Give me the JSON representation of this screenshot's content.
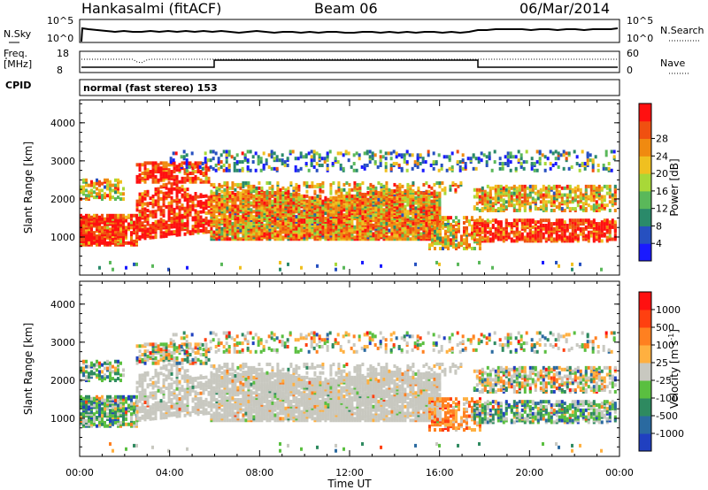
{
  "header": {
    "station": "Hankasalmi (fitACF)",
    "beam": "Beam 06",
    "date": "06/Mar/2014"
  },
  "top_panels": {
    "nsky_label": "N.Sky",
    "nsky_ticks": [
      "10^5",
      "10^0"
    ],
    "nsearch_label": "N.Search",
    "nsearch_ticks": [
      "10^5",
      "10^0"
    ],
    "freq_label_line1": "Freq.",
    "freq_label_line2": "[MHz]",
    "freq_ticks": [
      "18",
      "8"
    ],
    "nave_label": "Nave",
    "nave_ticks": [
      "60",
      "0"
    ],
    "cpid_label": "CPID",
    "cpid_text": "normal (fast stereo) 153"
  },
  "chart_data": [
    {
      "type": "heatmap",
      "name": "power-panel",
      "ylabel": "Slant Range [km]",
      "ylim": [
        0,
        4600
      ],
      "yticks": [
        1000,
        2000,
        3000,
        4000
      ],
      "xlim": [
        0,
        24
      ],
      "colorbar": {
        "label": "Power [dB]",
        "ticks": [
          "4",
          "8",
          "12",
          "16",
          "20",
          "24",
          "28"
        ],
        "colors": [
          "#1a1aff",
          "#2650c0",
          "#2a8a6a",
          "#5ab85a",
          "#a8d838",
          "#f0c020",
          "#f08a10",
          "#f05010",
          "#ff1010"
        ]
      }
    },
    {
      "type": "heatmap",
      "name": "velocity-panel",
      "ylabel": "Slant Range [km]",
      "ylim": [
        0,
        4600
      ],
      "yticks": [
        1000,
        2000,
        3000,
        4000
      ],
      "xlim": [
        0,
        24
      ],
      "xlabel": "Time UT",
      "xticks": [
        "00:00",
        "04:00",
        "08:00",
        "12:00",
        "16:00",
        "20:00",
        "00:00"
      ],
      "colorbar": {
        "label": "Velocity [m s",
        "label_sup": "-1",
        "label_end": "]",
        "ticks": [
          "1000",
          "500",
          "100",
          "25",
          "-25",
          "-100",
          "-500",
          "-1000"
        ],
        "colors": [
          "#2040c0",
          "#2a6aa0",
          "#2e8a60",
          "#5abf40",
          "#c8c8c0",
          "#ffb040",
          "#ff8020",
          "#ff4010",
          "#ff1010"
        ]
      }
    }
  ]
}
